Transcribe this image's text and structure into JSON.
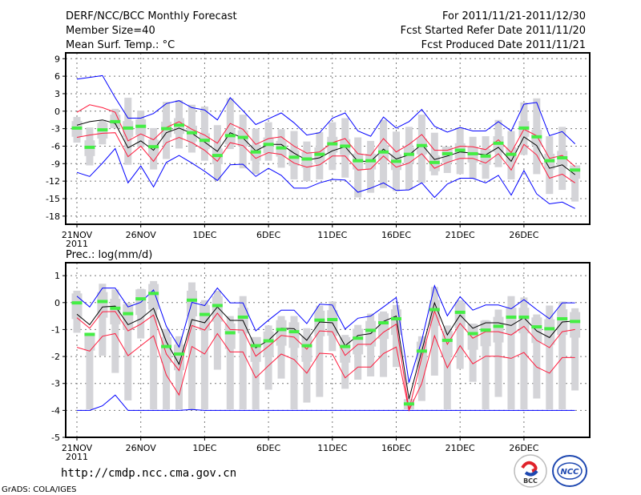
{
  "header": {
    "title": "DERF/NCC/BCC Monthly Forecast",
    "member_size": "Member Size=40",
    "variable": "Mean Surf. Temp.: °C",
    "period": "For 2011/11/21-2011/12/30",
    "started": "Fcst Started Refer Date 2011/11/20",
    "produced": "Fcst Produced Date 2011/11/21"
  },
  "footer": {
    "url": "http://cmdp.ncc.cma.gov.cn",
    "credit": "GrADS: COLA/IGES",
    "logo_bcc": "BCC",
    "logo_ncc": "NCC"
  },
  "colors": {
    "max_min": "#0000ff",
    "spread": "#ff1a3c",
    "mean": "#000000",
    "median": "#44ee44",
    "range": "#d4d4d8",
    "grid": "#777777"
  },
  "chart_data": [
    {
      "type": "line",
      "title": "Mean Surf. Temp.: °C",
      "ylabel": "°C",
      "ylim": [
        -19.4,
        10
      ],
      "yticks": [
        9,
        6,
        3,
        0,
        -3,
        -6,
        -9,
        -12,
        -15,
        -18
      ],
      "ytick_labels": [
        "9",
        "6",
        "3",
        "0",
        "-3",
        "-6",
        "-9",
        "-12",
        "-15",
        "-18"
      ],
      "xtick_days": [
        0,
        5,
        10,
        15,
        20,
        25,
        30,
        35
      ],
      "xtick_labels": [
        "21NOV",
        "26NOV",
        "1DEC",
        "6DEC",
        "11DEC",
        "16DEC",
        "21DEC",
        "26DEC"
      ],
      "xtick_year": "2011",
      "grid": true,
      "days": 40,
      "series": [
        {
          "name": "max",
          "values": [
            5.5,
            5.8,
            6.1,
            2.3,
            -1.2,
            -1.2,
            -0.4,
            1.3,
            1.8,
            0.6,
            0.2,
            -1.5,
            2.3,
            0.1,
            -2.3,
            -1.3,
            -0.3,
            -2.0,
            -4.1,
            -3.7,
            -1.2,
            -0.3,
            -3.4,
            -4.3,
            -1.0,
            -2.9,
            -1.8,
            0.3,
            -2.6,
            -3.6,
            -2.8,
            -3.4,
            -3.4,
            -1.8,
            -3.4,
            1.2,
            1.5,
            -4.2,
            -3.5,
            -5.6
          ]
        },
        {
          "name": "min",
          "values": [
            -10.5,
            -11.2,
            -8.9,
            -6.4,
            -12.3,
            -9.4,
            -13.0,
            -8.8,
            -7.6,
            -8.9,
            -10.3,
            -11.9,
            -9.2,
            -9.1,
            -11.2,
            -9.8,
            -11.0,
            -13.2,
            -13.2,
            -12.3,
            -11.7,
            -11.8,
            -13.9,
            -13.2,
            -12.3,
            -13.6,
            -13.5,
            -12.3,
            -14.8,
            -12.5,
            -11.5,
            -11.5,
            -12.3,
            -11.0,
            -14.4,
            -10.2,
            -14.2,
            -15.9,
            -15.6,
            -16.7
          ]
        },
        {
          "name": "upper",
          "values": [
            -0.2,
            1.1,
            0.6,
            -0.2,
            -5.1,
            -3.9,
            -4.9,
            -2.8,
            -1.8,
            -3.1,
            -4.1,
            -5.5,
            -2.1,
            -3.1,
            -5.7,
            -4.7,
            -4.4,
            -6.0,
            -7.2,
            -7.0,
            -5.4,
            -4.7,
            -7.3,
            -7.6,
            -4.7,
            -7.0,
            -5.7,
            -4.0,
            -6.7,
            -6.7,
            -6.0,
            -6.1,
            -6.6,
            -4.9,
            -7.1,
            -3.1,
            -4.2,
            -8.1,
            -7.6,
            -9.5
          ]
        },
        {
          "name": "lower",
          "values": [
            -4.5,
            -4.1,
            -3.8,
            -3.7,
            -7.8,
            -6.0,
            -8.6,
            -5.4,
            -4.5,
            -5.4,
            -6.7,
            -8.6,
            -5.4,
            -5.9,
            -8.1,
            -7.1,
            -7.4,
            -8.9,
            -9.6,
            -9.2,
            -7.7,
            -7.7,
            -10.1,
            -9.9,
            -7.7,
            -9.6,
            -8.9,
            -7.3,
            -9.8,
            -8.8,
            -8.1,
            -8.1,
            -8.9,
            -7.3,
            -10.1,
            -5.7,
            -7.5,
            -11.5,
            -10.8,
            -12.3
          ]
        },
        {
          "name": "mean",
          "values": [
            -2.4,
            -1.8,
            -1.5,
            -2.1,
            -6.3,
            -5.1,
            -6.7,
            -3.7,
            -2.9,
            -3.8,
            -5.3,
            -6.9,
            -3.7,
            -4.6,
            -6.8,
            -5.7,
            -5.7,
            -7.2,
            -8.4,
            -8.0,
            -6.8,
            -6.1,
            -8.6,
            -8.6,
            -6.5,
            -8.2,
            -7.5,
            -5.7,
            -8.3,
            -7.7,
            -7.0,
            -7.2,
            -7.5,
            -6.2,
            -8.6,
            -4.4,
            -5.9,
            -9.8,
            -9.2,
            -10.9
          ]
        },
        {
          "name": "median",
          "values": [
            -2.9,
            -6.2,
            -3.2,
            -1.8,
            -2.9,
            -2.6,
            -6.1,
            -3.0,
            -2.4,
            -3.7,
            -5.0,
            -7.6,
            -4.2,
            -4.5,
            -7.0,
            -5.7,
            -6.3,
            -7.9,
            -8.2,
            -7.4,
            -5.6,
            -6.0,
            -8.5,
            -8.5,
            -7.0,
            -8.6,
            -7.4,
            -5.9,
            -8.8,
            -7.3,
            -6.7,
            -7.3,
            -7.7,
            -5.5,
            -7.4,
            -2.9,
            -4.4,
            -8.5,
            -8.0,
            -10.1
          ]
        },
        {
          "name": "range_high",
          "values": [
            -1.0,
            -2.8,
            -1.5,
            0.4,
            2.3,
            0.1,
            -2.9,
            1.6,
            1.9,
            1.1,
            0.8,
            -2.4,
            2.2,
            -0.6,
            -3.0,
            -1.9,
            -3.1,
            -3.4,
            -5.2,
            -3.6,
            -1.9,
            -1.2,
            -4.5,
            -5.1,
            -1.5,
            -3.5,
            -2.7,
            -0.6,
            -3.7,
            -6.1,
            -2.8,
            -4.4,
            -4.3,
            -1.5,
            -3.4,
            1.5,
            2.2,
            -4.3,
            -2.7,
            -9.3
          ]
        },
        {
          "name": "range_low",
          "values": [
            -5.4,
            -9.3,
            -5.7,
            -2.9,
            -9.2,
            -6.2,
            -10.0,
            -8.2,
            -6.4,
            -7.1,
            -8.5,
            -11.9,
            -6.5,
            -9.8,
            -10.8,
            -8.5,
            -9.7,
            -11.7,
            -12.0,
            -11.7,
            -10.1,
            -11.4,
            -14.8,
            -14.0,
            -13.2,
            -13.7,
            -13.5,
            -12.3,
            -11.0,
            -10.6,
            -10.8,
            -11.6,
            -11.6,
            -9.6,
            -11.7,
            -7.5,
            -10.8,
            -14.2,
            -13.5,
            -15.5
          ]
        }
      ]
    },
    {
      "type": "line",
      "title": "Prec.: log(mm/d)",
      "ylabel": "log(mm/d)",
      "ylim": [
        -5,
        1.48
      ],
      "yticks": [
        1,
        0,
        -1,
        -2,
        -3,
        -4,
        -5
      ],
      "ytick_labels": [
        "1",
        "0",
        "-1",
        "-2",
        "-3",
        "-4",
        "-5"
      ],
      "xtick_days": [
        0,
        5,
        10,
        15,
        20,
        25,
        30,
        35
      ],
      "xtick_labels": [
        "21NOV",
        "26NOV",
        "1DEC",
        "6DEC",
        "11DEC",
        "16DEC",
        "21DEC",
        "26DEC"
      ],
      "xtick_year": "2011",
      "grid": true,
      "days": 40,
      "series": [
        {
          "name": "max",
          "values": [
            0.24,
            -0.16,
            0.54,
            0.54,
            -0.16,
            0.01,
            0.47,
            -0.88,
            -1.65,
            0.01,
            -0.11,
            0.54,
            -0.01,
            -0.01,
            -1.05,
            -0.65,
            -0.28,
            -0.28,
            -0.78,
            -0.06,
            -0.09,
            -0.98,
            -0.58,
            -0.5,
            -0.16,
            0.19,
            -2.97,
            -1.4,
            0.63,
            -0.49,
            0.22,
            -0.28,
            -0.09,
            -0.09,
            -0.23,
            0.11,
            -0.26,
            -0.6,
            -0.01,
            -0.01
          ]
        },
        {
          "name": "min",
          "values": [
            -4,
            -4,
            -3.83,
            -3.43,
            -4,
            -4,
            -4,
            -4,
            -4,
            -3.97,
            -4,
            -4,
            -4,
            -4,
            -4,
            -4,
            -4,
            -4,
            -4,
            -4,
            -4,
            -4,
            -4,
            -4,
            -4,
            -4,
            -4,
            -4,
            -4,
            -4,
            -4,
            -4,
            -4,
            -4,
            -4,
            -4,
            -4,
            -4,
            -4,
            -4
          ]
        },
        {
          "name": "upper",
          "values": [
            -0.56,
            -0.95,
            -0.34,
            -0.33,
            -1.05,
            -0.8,
            -0.46,
            -1.91,
            -2.52,
            -0.85,
            -1.02,
            -0.39,
            -1.0,
            -1.02,
            -1.99,
            -1.62,
            -1.22,
            -1.28,
            -1.73,
            -1.05,
            -1.08,
            -1.96,
            -1.55,
            -1.55,
            -1.1,
            -0.8,
            -3.98,
            -2.04,
            -0.31,
            -1.55,
            -0.77,
            -1.32,
            -1.08,
            -1.08,
            -1.2,
            -0.88,
            -1.4,
            -1.67,
            -1.08,
            -1.0
          ]
        },
        {
          "name": "lower",
          "values": [
            -1.66,
            -1.8,
            -1.25,
            -1.15,
            -1.97,
            -1.6,
            -1.23,
            -2.69,
            -3.43,
            -1.63,
            -1.91,
            -1.15,
            -1.83,
            -1.83,
            -2.79,
            -2.34,
            -1.91,
            -2.11,
            -2.62,
            -1.88,
            -1.91,
            -2.79,
            -2.39,
            -2.39,
            -1.89,
            -1.65,
            -4.0,
            -3.0,
            -1.23,
            -2.42,
            -1.6,
            -2.27,
            -1.99,
            -1.99,
            -2.07,
            -1.85,
            -2.39,
            -2.62,
            -2.04,
            -2.04
          ]
        },
        {
          "name": "mean",
          "values": [
            -0.43,
            -0.82,
            -0.16,
            -0.13,
            -0.82,
            -0.6,
            -0.21,
            -1.45,
            -2.29,
            -0.63,
            -0.75,
            -0.16,
            -0.66,
            -0.66,
            -1.68,
            -1.4,
            -0.95,
            -0.97,
            -1.4,
            -0.72,
            -0.75,
            -1.6,
            -1.22,
            -1.15,
            -0.7,
            -0.5,
            -3.58,
            -1.8,
            -0.01,
            -1.2,
            -0.46,
            -0.95,
            -0.75,
            -0.75,
            -0.85,
            -0.56,
            -1.05,
            -1.3,
            -0.72,
            -0.68
          ]
        },
        {
          "name": "median",
          "values": [
            -0.01,
            -1.18,
            0.04,
            -0.21,
            -0.41,
            0.14,
            0.34,
            -1.63,
            -1.91,
            0.09,
            -0.44,
            -0.11,
            -1.12,
            -0.54,
            -1.6,
            -1.42,
            -1.0,
            -1.08,
            -1.6,
            -0.65,
            -0.63,
            -1.63,
            -1.32,
            -1.03,
            -0.75,
            -0.6,
            -3.76,
            -1.8,
            -0.26,
            -1.4,
            -0.36,
            -1.15,
            -1.02,
            -0.88,
            -0.54,
            -0.54,
            -0.9,
            -0.97,
            -0.6,
            -0.7
          ]
        },
        {
          "name": "range_high",
          "values": [
            0.44,
            -1.12,
            0.7,
            0.49,
            -0.01,
            0.51,
            0.8,
            -0.98,
            -1.25,
            0.75,
            0.09,
            0.44,
            -0.5,
            0.24,
            -1.28,
            -0.85,
            -0.5,
            -0.5,
            -0.95,
            -0.11,
            0.04,
            -1.2,
            -0.83,
            -0.41,
            -0.33,
            -0.09,
            -3.58,
            -1.25,
            0.58,
            -0.85,
            0.09,
            -0.78,
            -0.65,
            -0.26,
            0.24,
            0.19,
            -0.44,
            -0.11,
            0.04,
            -0.21
          ]
        },
        {
          "name": "range_low",
          "values": [
            -1.12,
            -3.96,
            -1.97,
            -2.61,
            -3.63,
            -1.33,
            -3.96,
            -3.96,
            -3.96,
            -3.96,
            -3.96,
            -2.49,
            -3.96,
            -3.96,
            -3.96,
            -3.23,
            -2.82,
            -3.96,
            -3.71,
            -3.5,
            -1.8,
            -3.2,
            -2.86,
            -2.74,
            -2.76,
            -2.39,
            -3.96,
            -3.65,
            -2.71,
            -3.96,
            -2.46,
            -2.94,
            -3.96,
            -3.5,
            -3.96,
            -3.96,
            -3.56,
            -3.96,
            -3.96,
            -3.26
          ]
        }
      ]
    }
  ]
}
